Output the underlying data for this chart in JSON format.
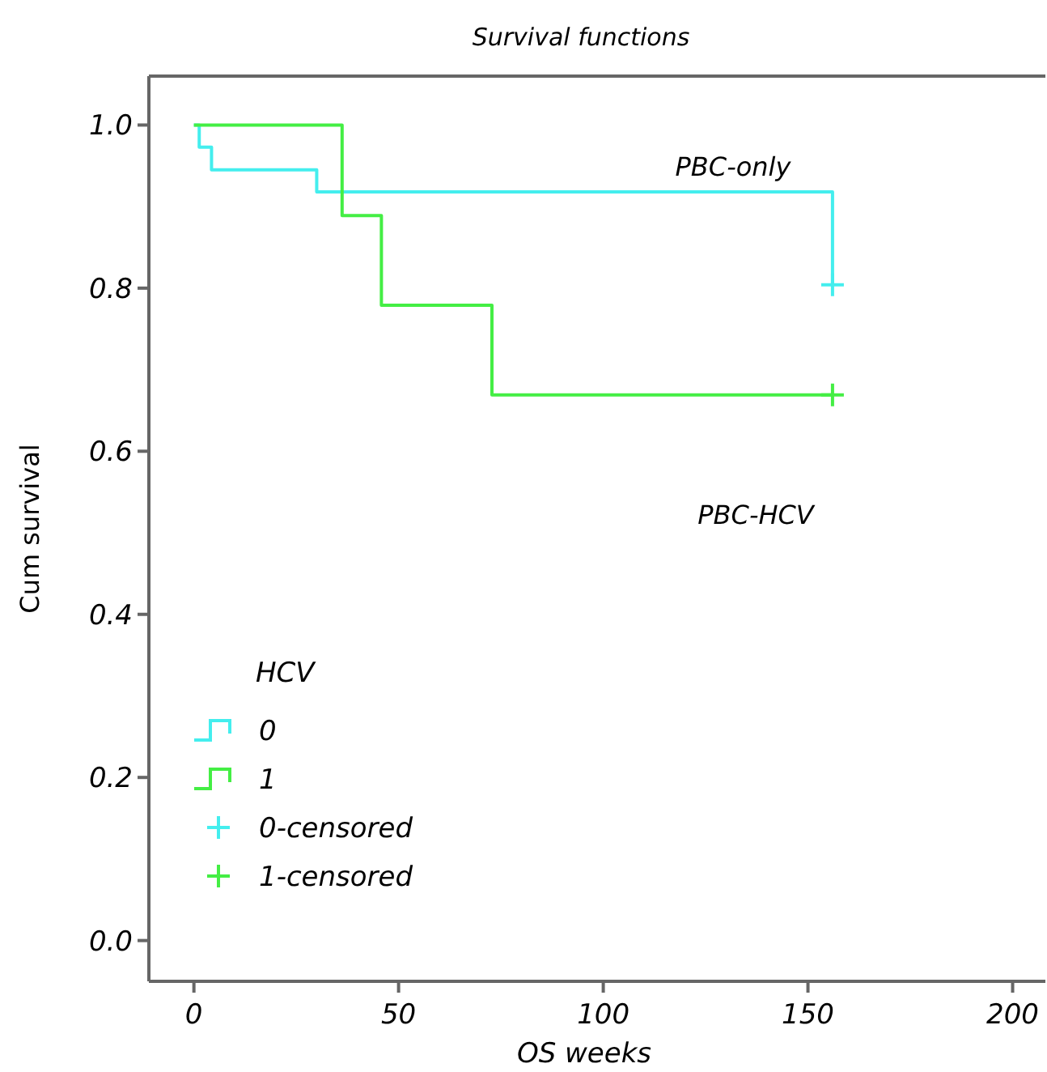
{
  "chart_data": {
    "type": "step",
    "title": "Survival functions",
    "xlabel": "OS weeks",
    "ylabel": "Cum survival",
    "legend_title": "HCV",
    "legend": "bottom left",
    "grid": false,
    "xlim": [
      -11,
      208
    ],
    "xticks": [
      0,
      50,
      100,
      150,
      200
    ],
    "ylim": [
      -0.05,
      1.06
    ],
    "yticks": [
      {
        "value": 0,
        "label": "0.0"
      },
      {
        "value": 0.2,
        "label": "0.2"
      },
      {
        "value": 0.4,
        "label": "0.4"
      },
      {
        "value": 0.6,
        "label": "0.6"
      },
      {
        "value": 0.8,
        "label": "0.8"
      },
      {
        "value": 1,
        "label": "1.0"
      }
    ],
    "series": [
      {
        "name": "0",
        "color": "#44eeee",
        "x": [
          0,
          1.3,
          4.3,
          30,
          156
        ],
        "values": [
          1,
          0.973,
          0.945,
          0.918,
          0.804
        ]
      },
      {
        "name": "1",
        "color": "#44ee44",
        "x": [
          0,
          36.2,
          45.8,
          72.8,
          156
        ],
        "values": [
          1,
          0.889,
          0.779,
          0.669,
          0.669
        ]
      },
      {
        "name": "0-censored",
        "type": "scatter",
        "marker": "cross",
        "color": "#44eeee",
        "x": [
          156
        ],
        "values": [
          0.804
        ]
      },
      {
        "name": "1-censored",
        "type": "scatter",
        "marker": "cross",
        "color": "#44ee44",
        "x": [
          156
        ],
        "values": [
          0.669
        ]
      }
    ],
    "annotations": [
      "PBC-only",
      "PBC-HCV"
    ]
  }
}
